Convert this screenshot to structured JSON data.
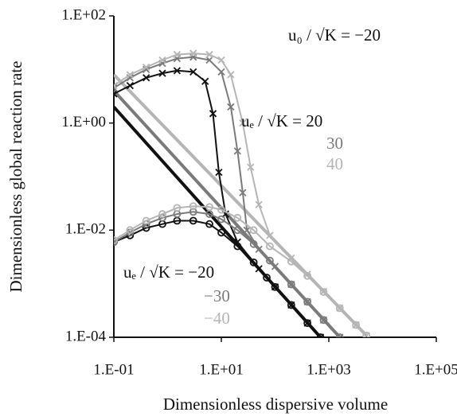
{
  "chart_data": {
    "type": "line",
    "x_label": "Dimensionless dispersive volume",
    "y_label": "Dimensionless global reaction rate",
    "xscale": "log",
    "yscale": "log",
    "xlim": [
      0.1,
      100000
    ],
    "ylim": [
      0.0001,
      100
    ],
    "xticks": [
      {
        "value": 0.1,
        "label": "1.E-01"
      },
      {
        "value": 10,
        "label": "1.E+01"
      },
      {
        "value": 1000,
        "label": "1.E+03"
      },
      {
        "value": 100000,
        "label": "1.E+05"
      }
    ],
    "yticks": [
      {
        "value": 0.0001,
        "label": "1.E-04"
      },
      {
        "value": 0.01,
        "label": "1.E-02"
      },
      {
        "value": 1,
        "label": "1.E+00"
      },
      {
        "value": 100,
        "label": "1.E+02"
      }
    ],
    "annotations": [
      "u₀ / √K = −20",
      "uₑ / √K = 20",
      "30",
      "40",
      "uₑ / √K = −20",
      "−30",
      "−40"
    ],
    "series": [
      {
        "color": "#111111",
        "x": [
          0.1,
          700
        ],
        "values": [
          2,
          0.0001
        ]
      },
      {
        "color": "#7a7a7a",
        "x": [
          0.1,
          1600
        ],
        "values": [
          4,
          0.0001
        ]
      },
      {
        "color": "#b5b5b5",
        "x": [
          0.1,
          5000
        ],
        "values": [
          8,
          0.000108
        ]
      },
      {
        "color": "#111111",
        "marker": "x",
        "x": [
          0.1,
          0.2,
          0.4,
          0.8,
          1.5,
          3,
          5,
          7,
          9,
          12,
          20,
          50,
          100,
          200,
          400,
          700
        ],
        "values": [
          3.5,
          5,
          7,
          8.5,
          9.5,
          9,
          6,
          1.5,
          0.12,
          0.02,
          0.006,
          0.0019,
          0.00087,
          0.0004,
          0.000184,
          0.0001
        ]
      },
      {
        "color": "#7a7a7a",
        "marker": "x",
        "x": [
          0.1,
          0.2,
          0.4,
          0.8,
          1.5,
          3,
          6,
          10,
          15,
          20,
          25,
          30,
          50,
          100,
          200,
          400,
          800,
          1600
        ],
        "values": [
          4.5,
          7,
          10,
          13,
          16,
          17,
          15,
          9,
          2,
          0.3,
          0.05,
          0.01,
          0.0044,
          0.0021,
          0.00097,
          0.00046,
          0.00021,
          0.0001
        ]
      },
      {
        "color": "#b5b5b5",
        "marker": "x",
        "x": [
          0.1,
          0.2,
          0.4,
          0.8,
          1.5,
          3,
          6,
          10,
          15,
          25,
          35,
          50,
          80,
          200,
          400,
          800,
          1600,
          3200,
          5000
        ],
        "values": [
          5,
          8,
          11,
          15,
          19,
          20,
          19,
          15,
          8,
          1,
          0.15,
          0.03,
          0.008,
          0.003,
          0.0015,
          0.00072,
          0.00035,
          0.00017,
          0.000108
        ]
      },
      {
        "color": "#111111",
        "marker": "o",
        "x": [
          0.1,
          0.2,
          0.4,
          0.8,
          1.5,
          3,
          6,
          10,
          20,
          40,
          70,
          100,
          200,
          400,
          700
        ],
        "values": [
          0.006,
          0.008,
          0.011,
          0.013,
          0.015,
          0.015,
          0.013,
          0.009,
          0.005,
          0.0025,
          0.0013,
          0.00087,
          0.0004,
          0.000184,
          0.0001
        ]
      },
      {
        "color": "#7a7a7a",
        "marker": "o",
        "x": [
          0.1,
          0.2,
          0.4,
          0.8,
          1.5,
          3,
          6,
          10,
          20,
          40,
          80,
          200,
          400,
          800,
          1600
        ],
        "values": [
          0.006,
          0.009,
          0.013,
          0.017,
          0.02,
          0.022,
          0.02,
          0.016,
          0.01,
          0.0055,
          0.0027,
          0.00097,
          0.00046,
          0.00021,
          0.0001
        ]
      },
      {
        "color": "#b5b5b5",
        "marker": "o",
        "x": [
          0.1,
          0.2,
          0.4,
          0.8,
          1.5,
          3,
          6,
          10,
          20,
          40,
          80,
          200,
          400,
          800,
          1600,
          3200,
          5000
        ],
        "values": [
          0.0065,
          0.01,
          0.015,
          0.02,
          0.026,
          0.028,
          0.027,
          0.024,
          0.017,
          0.01,
          0.005,
          0.0026,
          0.0014,
          0.0007,
          0.00035,
          0.00017,
          0.000108
        ]
      }
    ]
  }
}
